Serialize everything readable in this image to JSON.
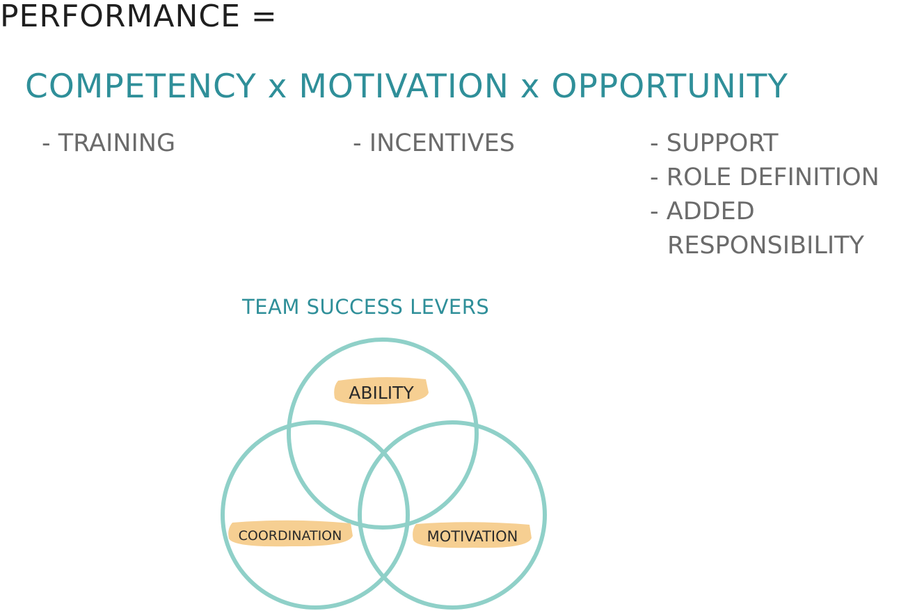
{
  "headline": "PERFORMANCE =",
  "equation": "COMPETENCY x MOTIVATION x OPPORTUNITY",
  "columns": {
    "competency": [
      "- TRAINING"
    ],
    "motivation": [
      "- INCENTIVES"
    ],
    "opportunity": {
      "line1": "- SUPPORT",
      "line2": "- ROLE DEFINITION",
      "line3": "- ADDED",
      "line4": "RESPONSIBILITY"
    }
  },
  "diagram": {
    "title": "TEAM SUCCESS LEVERS",
    "labels": {
      "top": "ABILITY",
      "left": "COORDINATION",
      "right": "MOTIVATION"
    },
    "colors": {
      "circle": "#8fd0c8",
      "highlight": "#f6cf92"
    }
  }
}
